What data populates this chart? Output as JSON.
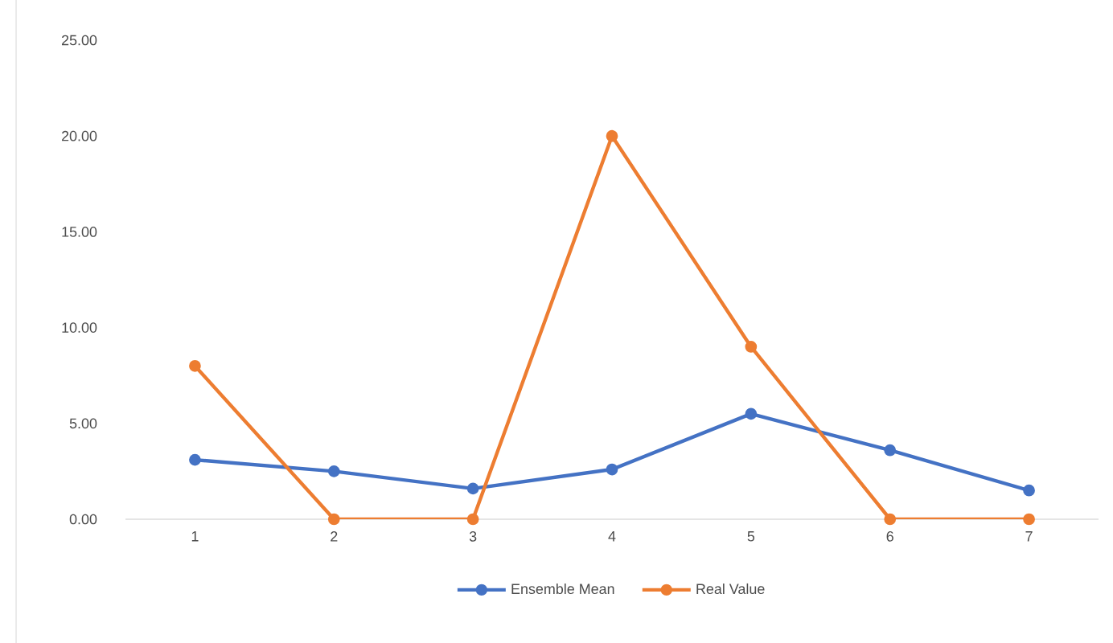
{
  "chart_data": {
    "type": "line",
    "categories": [
      "1",
      "2",
      "3",
      "4",
      "5",
      "6",
      "7"
    ],
    "series": [
      {
        "name": "Ensemble Mean",
        "color": "#4472c4",
        "values": [
          3.1,
          2.5,
          1.6,
          2.6,
          5.5,
          3.6,
          1.5
        ]
      },
      {
        "name": "Real Value",
        "color": "#ed7d31",
        "values": [
          8,
          0,
          0,
          20,
          9,
          0,
          0
        ]
      }
    ],
    "ylim": [
      0,
      25
    ],
    "yticks": [
      {
        "value": 0,
        "label": "0.00"
      },
      {
        "value": 5,
        "label": "5.00"
      },
      {
        "value": 10,
        "label": "10.00"
      },
      {
        "value": 15,
        "label": "15.00"
      },
      {
        "value": 20,
        "label": "20.00"
      },
      {
        "value": 25,
        "label": "25.00"
      }
    ],
    "grid": false,
    "legend": "bottom",
    "marker": "circle",
    "line_style": "solid"
  }
}
